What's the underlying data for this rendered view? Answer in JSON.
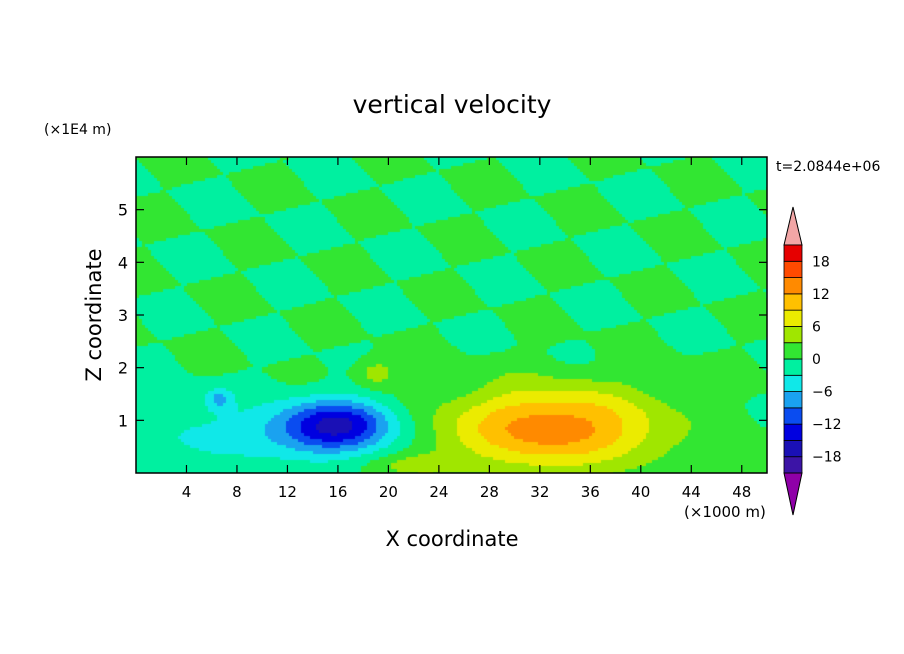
{
  "chart_data": {
    "type": "heatmap",
    "style": "filled-contour",
    "title": "vertical velocity",
    "xlabel": "X coordinate",
    "ylabel": "Z coordinate",
    "x_unit": "(×1000 m)",
    "y_unit": "(×1E4 m)",
    "time_label": "t=2.0844e+06",
    "xlim": [
      0,
      50
    ],
    "ylim": [
      0,
      6
    ],
    "x_ticks": [
      4,
      8,
      12,
      16,
      20,
      24,
      28,
      32,
      36,
      40,
      44,
      48
    ],
    "y_ticks": [
      1,
      2,
      3,
      4,
      5
    ],
    "background_level": 0,
    "features": [
      {
        "x": 16,
        "y": 0.9,
        "peak": -15,
        "sx": 3.2,
        "sy": 0.35
      },
      {
        "x": 33,
        "y": 0.85,
        "peak": 14,
        "sx": 6.0,
        "sy": 0.55
      },
      {
        "x": 6.5,
        "y": 1.4,
        "peak": -6,
        "sx": 0.8,
        "sy": 0.15
      },
      {
        "x": 19,
        "y": 1.9,
        "peak": 5,
        "sx": 1.2,
        "sy": 0.2
      },
      {
        "x": 22,
        "y": 0.15,
        "peak": 4,
        "sx": 2.5,
        "sy": 0.15
      },
      {
        "x": 8,
        "y": 0.7,
        "peak": -4,
        "sx": 6.0,
        "sy": 0.4
      }
    ],
    "colorbar": {
      "levels": [
        -21,
        -18,
        -15,
        -12,
        -9,
        -6,
        -3,
        0,
        3,
        6,
        9,
        12,
        15,
        18,
        21
      ],
      "tick_labels": [
        "18",
        "12",
        "6",
        "0",
        "−6",
        "−12",
        "−18"
      ],
      "tick_values": [
        18,
        12,
        6,
        0,
        -6,
        -12,
        -18
      ],
      "colors": [
        "#5a0090",
        "#3c14a6",
        "#1a10b5",
        "#0000e0",
        "#0a4cf0",
        "#1aa2f0",
        "#10e8e8",
        "#00f0a0",
        "#32e632",
        "#a0e600",
        "#ebeb00",
        "#ffc000",
        "#ff8a00",
        "#ff4a00",
        "#e60000",
        "#f2a6a6"
      ],
      "under_color": "#8f00a8",
      "over_color": "#f2a6a6"
    }
  }
}
